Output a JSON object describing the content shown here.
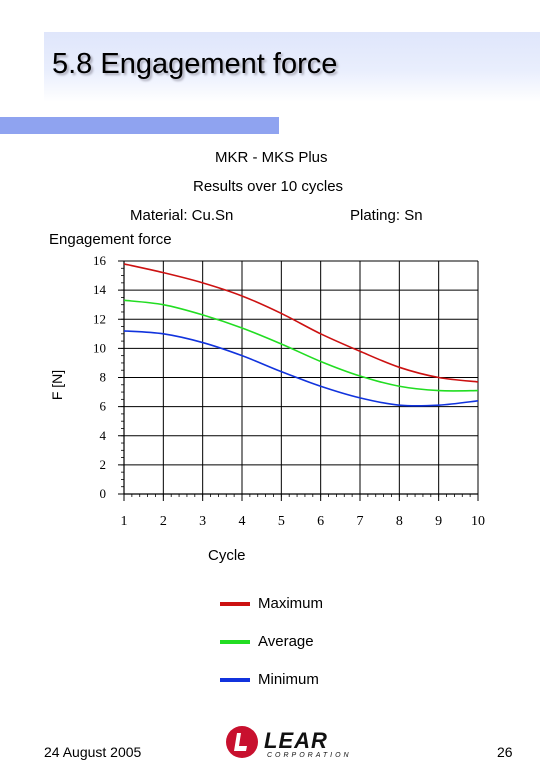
{
  "slide": {
    "title": "5.8 Engagement force",
    "product": "MKR - MKS  Plus",
    "results": "Results over 10 cycles",
    "material": "Material: Cu.Sn",
    "plating": "Plating: Sn",
    "date": "24 August 2005",
    "page_number": "26",
    "logo_text": "LEAR",
    "logo_sub": "CORPORATION"
  },
  "colors": {
    "title_bar": "#8fa3f0",
    "maximum": "#cc1111",
    "average": "#22dd22",
    "minimum": "#1133dd"
  },
  "chart_data": {
    "type": "line",
    "title": "Engagement force",
    "xlabel": "Cycle",
    "ylabel": "F [N]",
    "x": [
      1,
      2,
      3,
      4,
      5,
      6,
      7,
      8,
      9,
      10
    ],
    "xlim": [
      1,
      10
    ],
    "ylim": [
      0,
      16
    ],
    "x_ticks": [
      "1",
      "2",
      "3",
      "4",
      "5",
      "6",
      "7",
      "8",
      "9",
      "10"
    ],
    "y_ticks": [
      "0",
      "2",
      "4",
      "6",
      "8",
      "10",
      "12",
      "14",
      "16"
    ],
    "grid": true,
    "legend": "below",
    "series": [
      {
        "name": "Maximum",
        "color": "#cc1111",
        "values": [
          15.8,
          15.2,
          14.5,
          13.6,
          12.4,
          11.0,
          9.8,
          8.7,
          8.0,
          7.7
        ]
      },
      {
        "name": "Average",
        "color": "#22dd22",
        "values": [
          13.3,
          13.0,
          12.3,
          11.4,
          10.3,
          9.1,
          8.1,
          7.4,
          7.1,
          7.1
        ]
      },
      {
        "name": "Minimum",
        "color": "#1133dd",
        "values": [
          11.2,
          11.0,
          10.4,
          9.5,
          8.4,
          7.4,
          6.6,
          6.1,
          6.1,
          6.4
        ]
      }
    ]
  }
}
